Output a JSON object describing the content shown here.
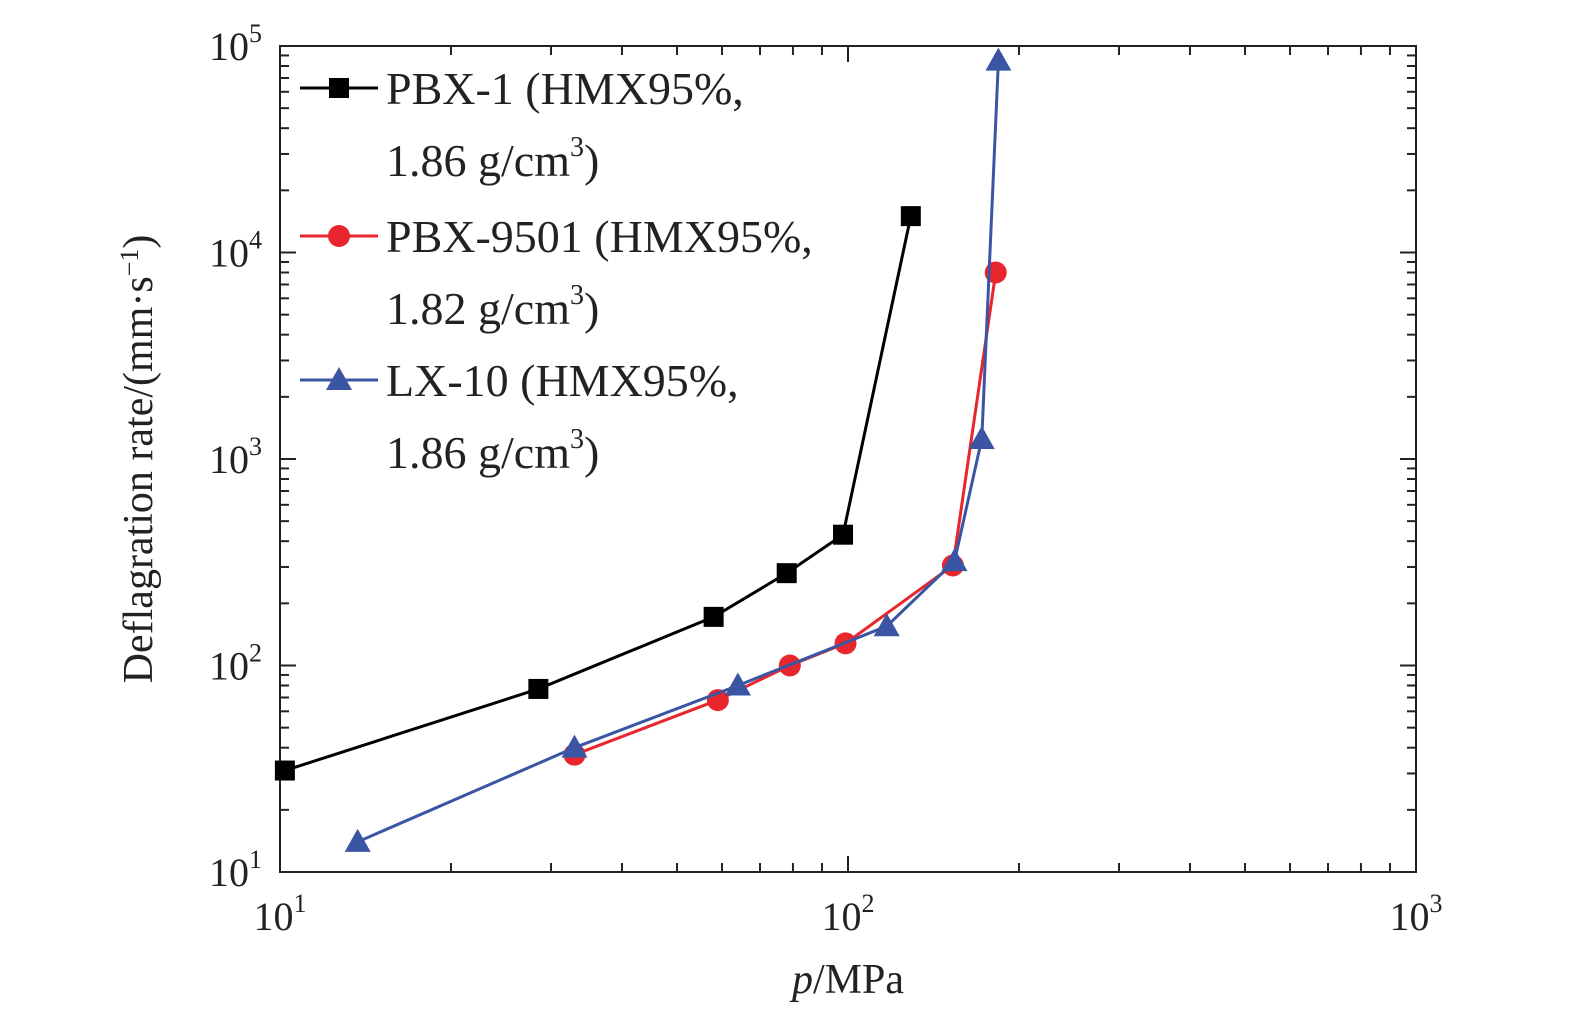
{
  "chart_data": {
    "type": "line",
    "xscale": "log",
    "yscale": "log",
    "xlim": [
      10,
      1000
    ],
    "ylim": [
      10,
      100000
    ],
    "xlabel": {
      "italic": "p",
      "rest": "/MPa"
    },
    "ylabel": {
      "main": "Deflagration rate/(mm·s",
      "sup": "−1",
      "close": ")"
    },
    "xticks": [
      {
        "base": "10",
        "exp": "1",
        "value": 10
      },
      {
        "base": "10",
        "exp": "2",
        "value": 100
      },
      {
        "base": "10",
        "exp": "3",
        "value": 1000
      }
    ],
    "yticks": [
      {
        "base": "10",
        "exp": "1",
        "value": 10
      },
      {
        "base": "10",
        "exp": "2",
        "value": 100
      },
      {
        "base": "10",
        "exp": "3",
        "value": 1000
      },
      {
        "base": "10",
        "exp": "4",
        "value": 10000
      },
      {
        "base": "10",
        "exp": "5",
        "value": 100000
      }
    ],
    "legend_position": "top-left",
    "series": [
      {
        "name": "PBX-1 (HMX95%,",
        "name_line2": "1.86 g/cm",
        "name_sup": "3",
        "name_close": ")",
        "color": "#000000",
        "marker": "square",
        "x": [
          10.2,
          28.5,
          58,
          78,
          98,
          129
        ],
        "y": [
          31,
          77,
          172,
          280,
          430,
          15000
        ]
      },
      {
        "name": "PBX-9501 (HMX95%,",
        "name_line2": "1.82 g/cm",
        "name_sup": "3",
        "name_close": ")",
        "color": "#e8262d",
        "marker": "circle",
        "x": [
          33,
          59,
          79,
          99,
          153,
          182
        ],
        "y": [
          37,
          68,
          100,
          128,
          305,
          8000
        ]
      },
      {
        "name": "LX-10 (HMX95%,",
        "name_line2": "1.86 g/cm",
        "name_sup": "3",
        "name_close": ")",
        "color": "#3a55a4",
        "marker": "triangle",
        "x": [
          13.7,
          33,
          64,
          117,
          154,
          172,
          184
        ],
        "y": [
          14,
          40,
          80,
          155,
          320,
          1250,
          85000
        ]
      }
    ]
  }
}
